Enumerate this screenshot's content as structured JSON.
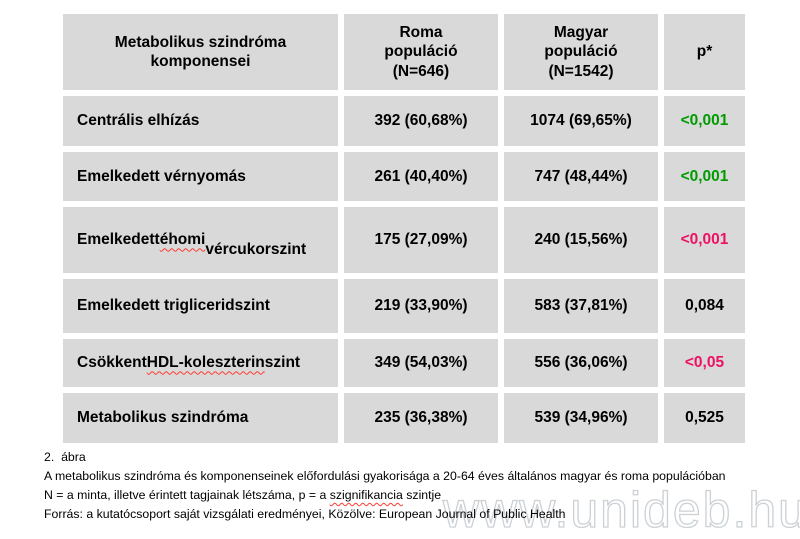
{
  "colors": {
    "significant_green": "#009b00",
    "significant_pink": "#ed1164",
    "cell_background": "#d9d9d9",
    "spellcheck_underline": "#ff3b30"
  },
  "chart_data": {
    "type": "table",
    "title": "Metabolikus szindróma komponensei",
    "columns": [
      "Metabolikus szindróma komponensei",
      "Roma populáció (N=646)",
      "Magyar populáció (N=1542)",
      "p*"
    ],
    "columns_display": {
      "component": "Metabolikus szindróma\nkomponensei",
      "roma": "Roma\npopuláció\n(N=646)",
      "magyar": "Magyar\npopuláció\n(N=1542)",
      "p": "p*"
    },
    "rows": [
      {
        "pre": "Centrális elhízás",
        "mis": "",
        "post": "",
        "roma": "392 (60,68%)",
        "magyar": "1074 (69,65%)",
        "p": "<0,001",
        "p_color": "green"
      },
      {
        "pre": "Emelkedett vérnyomás",
        "mis": "",
        "post": "",
        "roma": "261 (40,40%)",
        "magyar": "747 (48,44%)",
        "p": "<0,001",
        "p_color": "green"
      },
      {
        "pre": "Emelkedett ",
        "mis": "éhomi",
        "post": "\nvércukorszint",
        "roma": "175 (27,09%)",
        "magyar": "240 (15,56%)",
        "p": "<0,001",
        "p_color": "pink"
      },
      {
        "pre": "Emelkedett trigliceridszint",
        "mis": "",
        "post": "",
        "roma": "219 (33,90%)",
        "magyar": "583 (37,81%)",
        "p": "0,084",
        "p_color": "black"
      },
      {
        "pre": "Csökkent ",
        "mis": "HDL-koleszterin",
        "post": " szint",
        "roma": "349 (54,03%)",
        "magyar": "556 (36,06%)",
        "p": "<0,05",
        "p_color": "pink"
      },
      {
        "pre": "Metabolikus szindróma",
        "mis": "",
        "post": "",
        "roma": "235 (36,38%)",
        "magyar": "539 (34,96%)",
        "p": "0,525",
        "p_color": "black"
      }
    ]
  },
  "caption": {
    "figure_label": "2.  ábra",
    "line1": "A metabolikus szindróma és komponenseinek előfordulási gyakorisága a 20-64 éves általános magyar és roma populációban",
    "line2_pre": "N = a minta, illetve érintett tagjainak létszáma, p = a ",
    "line2_mis": "szignifikancia",
    "line2_post": " szintje",
    "line3": "Forrás: a kutatócsoport saját vizsgálati eredményei, Közölve: European Journal of Public Health"
  },
  "watermark": "www.unideb.hu"
}
